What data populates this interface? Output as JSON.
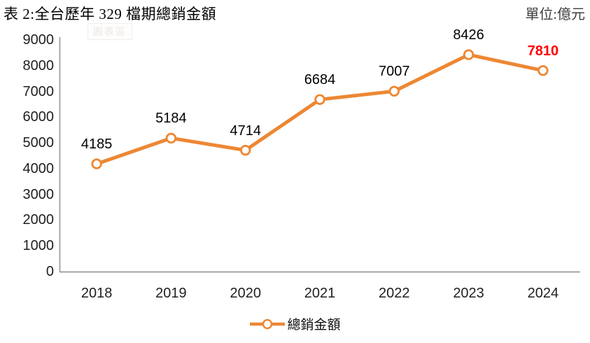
{
  "header": {
    "title": "表 2:全台歷年 329 檔期總銷金額",
    "unit": "單位:億元"
  },
  "chart_area_tooltip": "圖表區",
  "chart_data": {
    "type": "line",
    "title": "表 2:全台歷年 329 檔期總銷金額",
    "unit_label": "單位:億元",
    "categories": [
      "2018",
      "2019",
      "2020",
      "2021",
      "2022",
      "2023",
      "2024"
    ],
    "series": [
      {
        "name": "總銷金額",
        "values": [
          4185,
          5184,
          4714,
          6684,
          7007,
          8426,
          7810
        ]
      }
    ],
    "legend_label": "總銷金額",
    "legend_position": "bottom",
    "ylim": [
      0,
      9000
    ],
    "yticks": [
      0,
      1000,
      2000,
      3000,
      4000,
      5000,
      6000,
      7000,
      8000,
      9000
    ],
    "grid": false,
    "highlight_last": true,
    "colors": {
      "line": "#ED8733",
      "marker_fill": "#FFFFFF",
      "axis": "#8A8A8A",
      "label": "#000000",
      "highlight": "#FF0000"
    }
  }
}
